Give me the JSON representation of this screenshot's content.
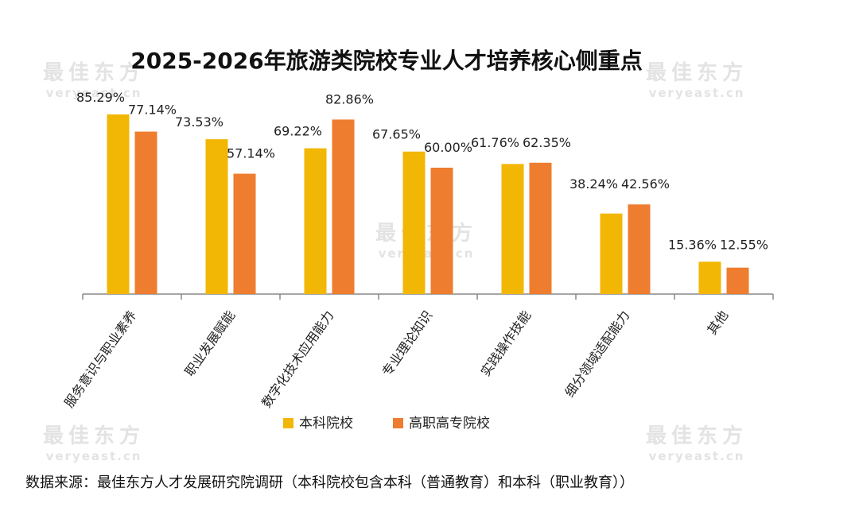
{
  "watermark": {
    "brand_cn": "最佳东方",
    "brand_url": "veryeast.cn"
  },
  "source_note": "数据来源：最佳东方人才发展研究院调研（本科院校包含本科（普通教育）和本科（职业教育））",
  "colors": {
    "undergrad": "#F2B705",
    "vocational": "#EE7D2F",
    "axis": "#888888"
  },
  "chart_data": {
    "type": "bar",
    "title": "2025-2026年旅游类院校专业人才培养核心侧重点",
    "categories": [
      "服务意识与职业素养",
      "职业发展赋能",
      "数字化技术应用能力",
      "专业理论知识",
      "实践操作技能",
      "细分领域适配能力",
      "其他"
    ],
    "series": [
      {
        "name": "本科院校",
        "values": [
          85.29,
          73.53,
          69.22,
          67.65,
          61.76,
          38.24,
          15.36
        ],
        "labels": [
          "85.29%",
          "73.53%",
          "69.22%",
          "67.65%",
          "61.76%",
          "38.24%",
          "15.36%"
        ]
      },
      {
        "name": "高职高专院校",
        "values": [
          77.14,
          57.14,
          82.86,
          60.0,
          62.35,
          42.56,
          12.55
        ],
        "labels": [
          "77.14%",
          "57.14%",
          "82.86%",
          "60.00%",
          "62.35%",
          "42.56%",
          "12.55%"
        ]
      }
    ],
    "ylim": [
      0,
      100
    ],
    "grid": false,
    "legend_position": "bottom"
  }
}
